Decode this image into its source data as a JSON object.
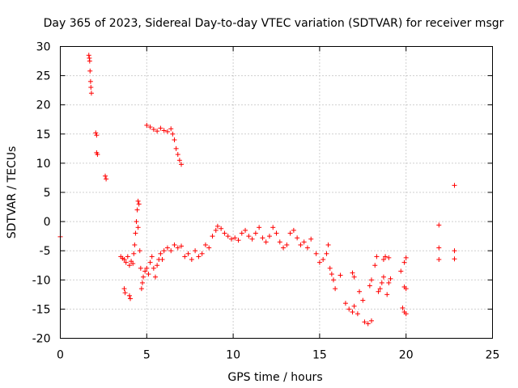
{
  "chart_data": {
    "type": "scatter",
    "title": "Day 365 of 2023, Sidereal Day-to-day VTEC variation (SDTVAR) for receiver msgr",
    "xlabel": "GPS time / hours",
    "ylabel": "SDTVAR / TECUs",
    "xlim": [
      0,
      25
    ],
    "ylim": [
      -20,
      30
    ],
    "xticks": [
      0,
      5,
      10,
      15,
      20,
      25
    ],
    "yticks": [
      -20,
      -15,
      -10,
      -5,
      0,
      5,
      10,
      15,
      20,
      25,
      30
    ],
    "grid": true,
    "marker": "+",
    "color": "#ff0000",
    "series": [
      {
        "name": "SDTVAR",
        "points": [
          [
            0.0,
            -2.6
          ],
          [
            1.65,
            28.5
          ],
          [
            1.68,
            28.0
          ],
          [
            1.7,
            27.5
          ],
          [
            1.72,
            25.8
          ],
          [
            1.75,
            24.0
          ],
          [
            1.77,
            23.0
          ],
          [
            1.8,
            22.0
          ],
          [
            2.05,
            15.2
          ],
          [
            2.1,
            14.8
          ],
          [
            2.1,
            11.8
          ],
          [
            2.15,
            11.5
          ],
          [
            2.6,
            7.8
          ],
          [
            2.65,
            7.3
          ],
          [
            3.5,
            -6.0
          ],
          [
            3.6,
            -6.3
          ],
          [
            3.7,
            -6.5
          ],
          [
            3.8,
            -7.0
          ],
          [
            3.7,
            -11.5
          ],
          [
            3.75,
            -12.2
          ],
          [
            3.9,
            -6.0
          ],
          [
            4.0,
            -7.5
          ],
          [
            4.0,
            -12.7
          ],
          [
            4.05,
            -13.2
          ],
          [
            4.1,
            -6.8
          ],
          [
            4.2,
            -7.2
          ],
          [
            4.25,
            -5.5
          ],
          [
            4.3,
            -4.0
          ],
          [
            4.35,
            -2.0
          ],
          [
            4.4,
            0.0
          ],
          [
            4.45,
            2.0
          ],
          [
            4.5,
            3.5
          ],
          [
            4.55,
            3.0
          ],
          [
            4.5,
            -1.0
          ],
          [
            4.6,
            -5.0
          ],
          [
            4.65,
            -8.0
          ],
          [
            4.7,
            -11.5
          ],
          [
            4.75,
            -10.5
          ],
          [
            4.8,
            -9.5
          ],
          [
            4.9,
            -8.5
          ],
          [
            5.0,
            -8.0
          ],
          [
            5.1,
            -9.0
          ],
          [
            5.2,
            -7.0
          ],
          [
            5.3,
            -6.0
          ],
          [
            5.4,
            -8.0
          ],
          [
            5.5,
            -9.5
          ],
          [
            5.6,
            -7.5
          ],
          [
            5.7,
            -6.5
          ],
          [
            5.8,
            -5.5
          ],
          [
            5.9,
            -6.5
          ],
          [
            6.0,
            -5.0
          ],
          [
            6.2,
            -4.5
          ],
          [
            6.4,
            -5.0
          ],
          [
            6.6,
            -4.0
          ],
          [
            6.8,
            -4.5
          ],
          [
            7.0,
            -4.2
          ],
          [
            5.0,
            16.5
          ],
          [
            5.2,
            16.2
          ],
          [
            5.4,
            15.8
          ],
          [
            5.6,
            15.5
          ],
          [
            5.8,
            16.0
          ],
          [
            6.0,
            15.6
          ],
          [
            6.2,
            15.4
          ],
          [
            6.4,
            15.9
          ],
          [
            6.5,
            15.0
          ],
          [
            6.6,
            14.0
          ],
          [
            6.7,
            12.5
          ],
          [
            6.8,
            11.5
          ],
          [
            6.9,
            10.5
          ],
          [
            7.0,
            9.8
          ],
          [
            7.2,
            -6.0
          ],
          [
            7.4,
            -5.5
          ],
          [
            7.6,
            -6.5
          ],
          [
            7.8,
            -5.0
          ],
          [
            8.0,
            -6.0
          ],
          [
            8.2,
            -5.5
          ],
          [
            8.4,
            -4.0
          ],
          [
            8.6,
            -4.5
          ],
          [
            8.8,
            -2.5
          ],
          [
            9.0,
            -1.5
          ],
          [
            9.1,
            -0.8
          ],
          [
            9.3,
            -1.2
          ],
          [
            9.5,
            -2.0
          ],
          [
            9.7,
            -2.5
          ],
          [
            9.9,
            -3.0
          ],
          [
            10.1,
            -2.8
          ],
          [
            10.3,
            -3.2
          ],
          [
            10.5,
            -2.0
          ],
          [
            10.7,
            -1.5
          ],
          [
            10.9,
            -2.5
          ],
          [
            11.1,
            -3.0
          ],
          [
            11.3,
            -2.0
          ],
          [
            11.5,
            -1.0
          ],
          [
            11.7,
            -2.8
          ],
          [
            11.9,
            -3.5
          ],
          [
            12.1,
            -2.5
          ],
          [
            12.3,
            -1.0
          ],
          [
            12.5,
            -2.0
          ],
          [
            12.7,
            -3.5
          ],
          [
            12.9,
            -4.5
          ],
          [
            13.1,
            -4.0
          ],
          [
            13.3,
            -2.0
          ],
          [
            13.5,
            -1.5
          ],
          [
            13.7,
            -2.8
          ],
          [
            13.9,
            -4.0
          ],
          [
            14.1,
            -3.5
          ],
          [
            14.3,
            -4.5
          ],
          [
            14.5,
            -3.0
          ],
          [
            14.8,
            -5.5
          ],
          [
            15.0,
            -7.0
          ],
          [
            15.2,
            -6.5
          ],
          [
            15.4,
            -5.5
          ],
          [
            15.5,
            -4.0
          ],
          [
            15.6,
            -8.0
          ],
          [
            15.7,
            -9.0
          ],
          [
            15.8,
            -10.0
          ],
          [
            15.9,
            -11.5
          ],
          [
            16.2,
            -9.2
          ],
          [
            16.5,
            -14.0
          ],
          [
            16.7,
            -15.0
          ],
          [
            16.9,
            -15.5
          ],
          [
            17.0,
            -14.5
          ],
          [
            17.2,
            -15.8
          ],
          [
            16.9,
            -8.8
          ],
          [
            17.0,
            -9.5
          ],
          [
            17.3,
            -12.0
          ],
          [
            17.5,
            -13.5
          ],
          [
            17.6,
            -17.2
          ],
          [
            17.8,
            -17.5
          ],
          [
            18.0,
            -17.0
          ],
          [
            17.9,
            -11.0
          ],
          [
            18.0,
            -10.0
          ],
          [
            18.2,
            -7.5
          ],
          [
            18.3,
            -6.0
          ],
          [
            18.4,
            -12.0
          ],
          [
            18.5,
            -11.5
          ],
          [
            18.6,
            -10.5
          ],
          [
            18.7,
            -9.5
          ],
          [
            18.7,
            -6.5
          ],
          [
            18.8,
            -6.0
          ],
          [
            18.9,
            -12.5
          ],
          [
            19.0,
            -10.5
          ],
          [
            19.0,
            -6.2
          ],
          [
            19.1,
            -9.8
          ],
          [
            19.7,
            -8.5
          ],
          [
            19.8,
            -14.8
          ],
          [
            19.9,
            -15.5
          ],
          [
            20.0,
            -15.8
          ],
          [
            19.9,
            -11.2
          ],
          [
            20.0,
            -11.5
          ],
          [
            19.9,
            -7.0
          ],
          [
            20.0,
            -6.2
          ],
          [
            21.9,
            -0.6
          ],
          [
            21.9,
            -4.5
          ],
          [
            21.9,
            -6.5
          ],
          [
            22.8,
            6.2
          ],
          [
            22.8,
            -5.0
          ],
          [
            22.8,
            -6.4
          ]
        ]
      }
    ]
  }
}
